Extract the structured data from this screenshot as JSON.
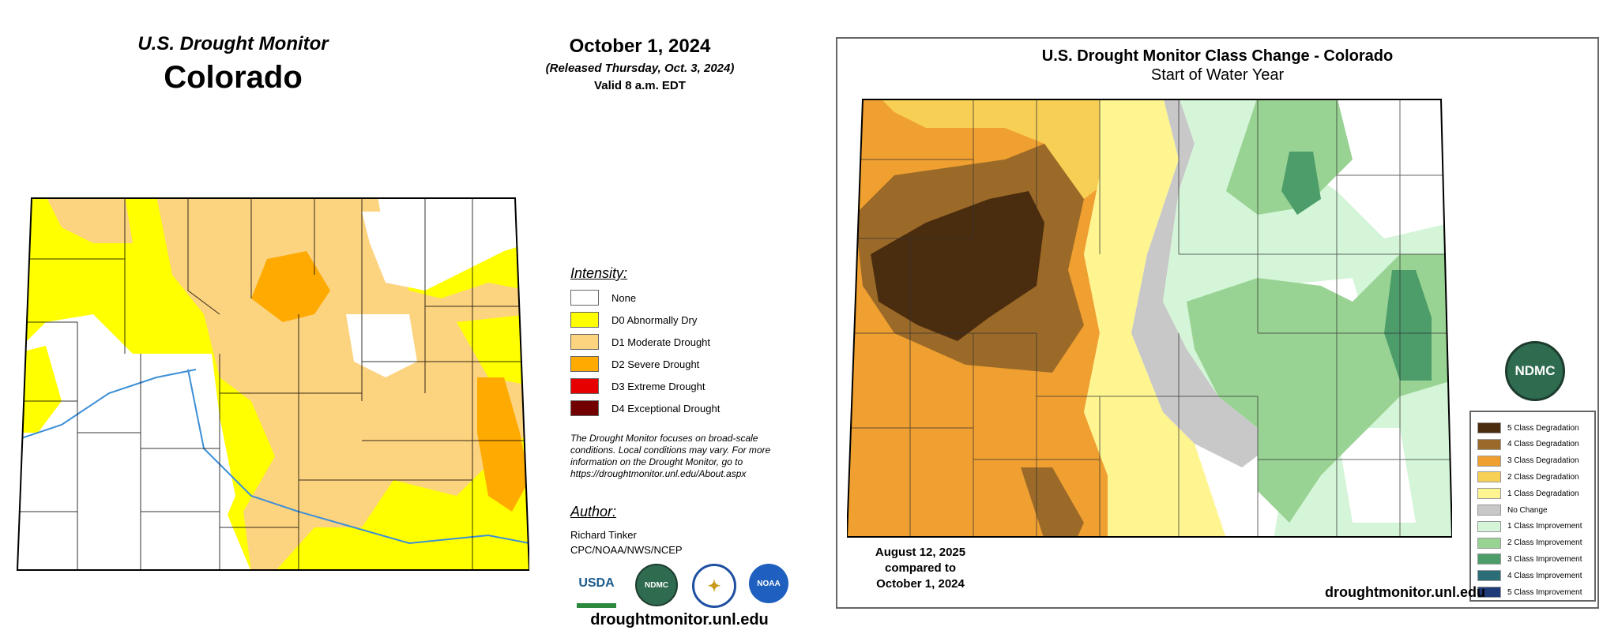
{
  "left_map": {
    "subtitle": "U.S. Drought Monitor",
    "title": "Colorado",
    "date": "October 1, 2024",
    "released": "(Released Thursday, Oct. 3, 2024)",
    "valid": "Valid 8 a.m. EDT",
    "legend": {
      "heading": "Intensity:",
      "items": [
        {
          "label": "None",
          "color": "#ffffff"
        },
        {
          "label": "D0 Abnormally Dry",
          "color": "#ffff00"
        },
        {
          "label": "D1 Moderate Drought",
          "color": "#fcd37f"
        },
        {
          "label": "D2 Severe Drought",
          "color": "#ffaa00"
        },
        {
          "label": "D3 Extreme Drought",
          "color": "#e60000"
        },
        {
          "label": "D4 Exceptional Drought",
          "color": "#730000"
        }
      ]
    },
    "note": "The Drought Monitor focuses on broad-scale conditions. Local conditions may vary. For more information on the Drought Monitor, go to https://droughtmonitor.unl.edu/About.aspx",
    "author_heading": "Author:",
    "author_name": "Richard Tinker",
    "author_org": "CPC/NOAA/NWS/NCEP",
    "logos": [
      {
        "text": "USDA",
        "icon": "usda-logo"
      },
      {
        "text": "NDMC",
        "icon": "ndmc-logo"
      },
      {
        "text": "",
        "icon": "doc-seal-logo"
      },
      {
        "text": "NOAA",
        "icon": "noaa-logo"
      }
    ],
    "url": "droughtmonitor.unl.edu"
  },
  "right_map": {
    "title": "U.S. Drought Monitor Class Change - Colorado",
    "subtitle": "Start of Water Year",
    "compare_line1": "August 12, 2025",
    "compare_line2": "compared to",
    "compare_line3": "October 1, 2024",
    "logo_text": "NDMC",
    "url": "droughtmonitor.unl.edu",
    "legend": [
      {
        "label": "5 Class Degradation",
        "color": "#4a2c0e"
      },
      {
        "label": "4 Class Degradation",
        "color": "#9c6a28"
      },
      {
        "label": "3 Class Degradation",
        "color": "#f0a030"
      },
      {
        "label": "2 Class Degradation",
        "color": "#f7cf55"
      },
      {
        "label": "1 Class Degradation",
        "color": "#fef590"
      },
      {
        "label": "No Change",
        "color": "#c8c8c8"
      },
      {
        "label": "1 Class Improvement",
        "color": "#d4f5d8"
      },
      {
        "label": "2 Class Improvement",
        "color": "#98d393"
      },
      {
        "label": "3 Class Improvement",
        "color": "#4c9d6a"
      },
      {
        "label": "4 Class Improvement",
        "color": "#2b6e77"
      },
      {
        "label": "5 Class Improvement",
        "color": "#1e3a78"
      }
    ]
  }
}
